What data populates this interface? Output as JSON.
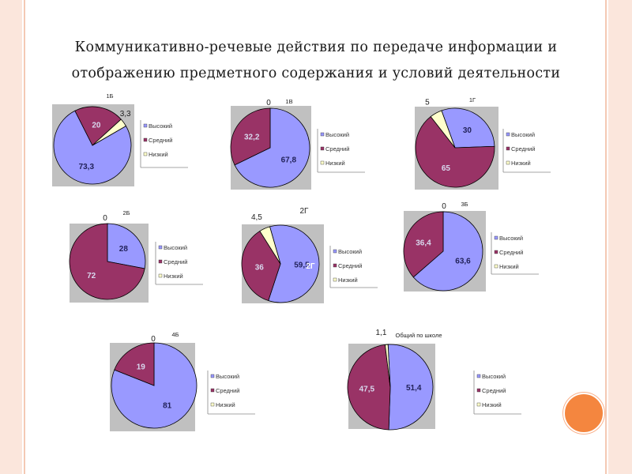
{
  "title": {
    "line1": "Коммуникативно-речевые действия по передаче информации и",
    "line2": "отображению предметного содержания и условий деятельности"
  },
  "colors": {
    "high": "#9999ff",
    "mid": "#993366",
    "low": "#ffffcc",
    "plot_bg": "#c0c0c0",
    "accent": "#f4863f"
  },
  "chart_data": [
    {
      "type": "pie",
      "title": "1Б",
      "categories": [
        "Высокий",
        "Средний",
        "Низкий"
      ],
      "values": [
        73.3,
        20,
        3.3
      ],
      "labels": [
        "73,3",
        "20",
        "3,3"
      ]
    },
    {
      "type": "pie",
      "title": "1В",
      "categories": [
        "Высокий",
        "Средний",
        "Низкий"
      ],
      "values": [
        67.8,
        32.2,
        0
      ],
      "labels": [
        "67,8",
        "32,2",
        "0"
      ]
    },
    {
      "type": "pie",
      "title": "1Г",
      "categories": [
        "Высокий",
        "Средний",
        "Низкий"
      ],
      "values": [
        30,
        65,
        5
      ],
      "labels": [
        "30",
        "65",
        "5"
      ]
    },
    {
      "type": "pie",
      "title": "2Б",
      "categories": [
        "Высокий",
        "Средний",
        "Низкий"
      ],
      "values": [
        28,
        72,
        0
      ],
      "labels": [
        "28",
        "72",
        "0"
      ]
    },
    {
      "type": "pie",
      "title": "2Г",
      "categories": [
        "Высокий",
        "Средний",
        "Низкий"
      ],
      "values": [
        59.5,
        36,
        4.5
      ],
      "labels": [
        "59,5",
        "36",
        "4,5"
      ],
      "inner_label": "2Г"
    },
    {
      "type": "pie",
      "title": "3Б",
      "categories": [
        "Высокий",
        "Средний",
        "Низкий"
      ],
      "values": [
        63.6,
        36.4,
        0
      ],
      "labels": [
        "63,6",
        "36,4",
        "0"
      ]
    },
    {
      "type": "pie",
      "title": "4Б",
      "categories": [
        "Высокий",
        "Средний",
        "Низкий"
      ],
      "values": [
        81,
        19,
        0
      ],
      "labels": [
        "81",
        "19",
        "0"
      ]
    },
    {
      "type": "pie",
      "title": "Общий по школе",
      "categories": [
        "Высокий",
        "Средний",
        "Низкий"
      ],
      "values": [
        51.4,
        47.5,
        1.1
      ],
      "labels": [
        "51,4",
        "47,5",
        "1,1"
      ]
    }
  ]
}
